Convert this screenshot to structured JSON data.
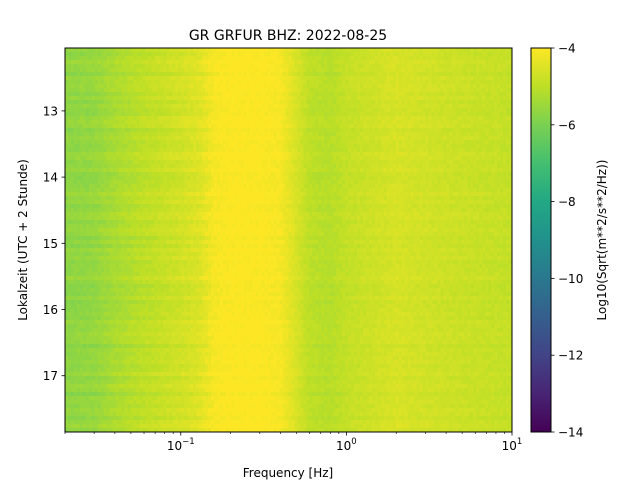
{
  "chart_data": {
    "type": "heatmap",
    "title": "GR GRFUR  BHZ: 2022-08-25",
    "xlabel": "Frequency [Hz]",
    "ylabel": "Lokalzeit (UTC + 2 Stunde)",
    "xscale": "log",
    "xlim": [
      0.02,
      10
    ],
    "ylim": [
      12.05,
      17.85
    ],
    "y_inverted": true,
    "x_ticks": [
      {
        "value": 0.1,
        "base": "10",
        "exp": "−1"
      },
      {
        "value": 1,
        "base": "10",
        "exp": "0"
      },
      {
        "value": 10,
        "base": "10",
        "exp": "1"
      }
    ],
    "y_ticks": [
      13,
      14,
      15,
      16,
      17
    ],
    "y_tick_labels": [
      "13",
      "14",
      "15",
      "16",
      "17"
    ],
    "colorbar": {
      "label": "Log10(Sqrt(m**2/s**2/Hz))",
      "colormap": "viridis",
      "range": [
        -14,
        -4
      ],
      "ticks": [
        -4,
        -6,
        -8,
        -10,
        -12,
        -14
      ],
      "tick_labels": [
        "−4",
        "−6",
        "−8",
        "−10",
        "−12",
        "−14"
      ]
    },
    "heatmap_profile": {
      "frequency_hz": [
        0.02,
        0.03,
        0.04,
        0.06,
        0.1,
        0.13,
        0.16,
        0.2,
        0.3,
        0.4,
        0.5,
        0.6,
        0.8,
        1,
        2,
        3,
        5,
        10
      ],
      "psd_log10": [
        -5.7,
        -5.6,
        -5.3,
        -5.0,
        -4.7,
        -4.5,
        -4.1,
        -4.0,
        -4.0,
        -4.1,
        -4.6,
        -5.0,
        -5.1,
        -4.9,
        -4.6,
        -4.7,
        -4.8,
        -4.9
      ]
    }
  }
}
